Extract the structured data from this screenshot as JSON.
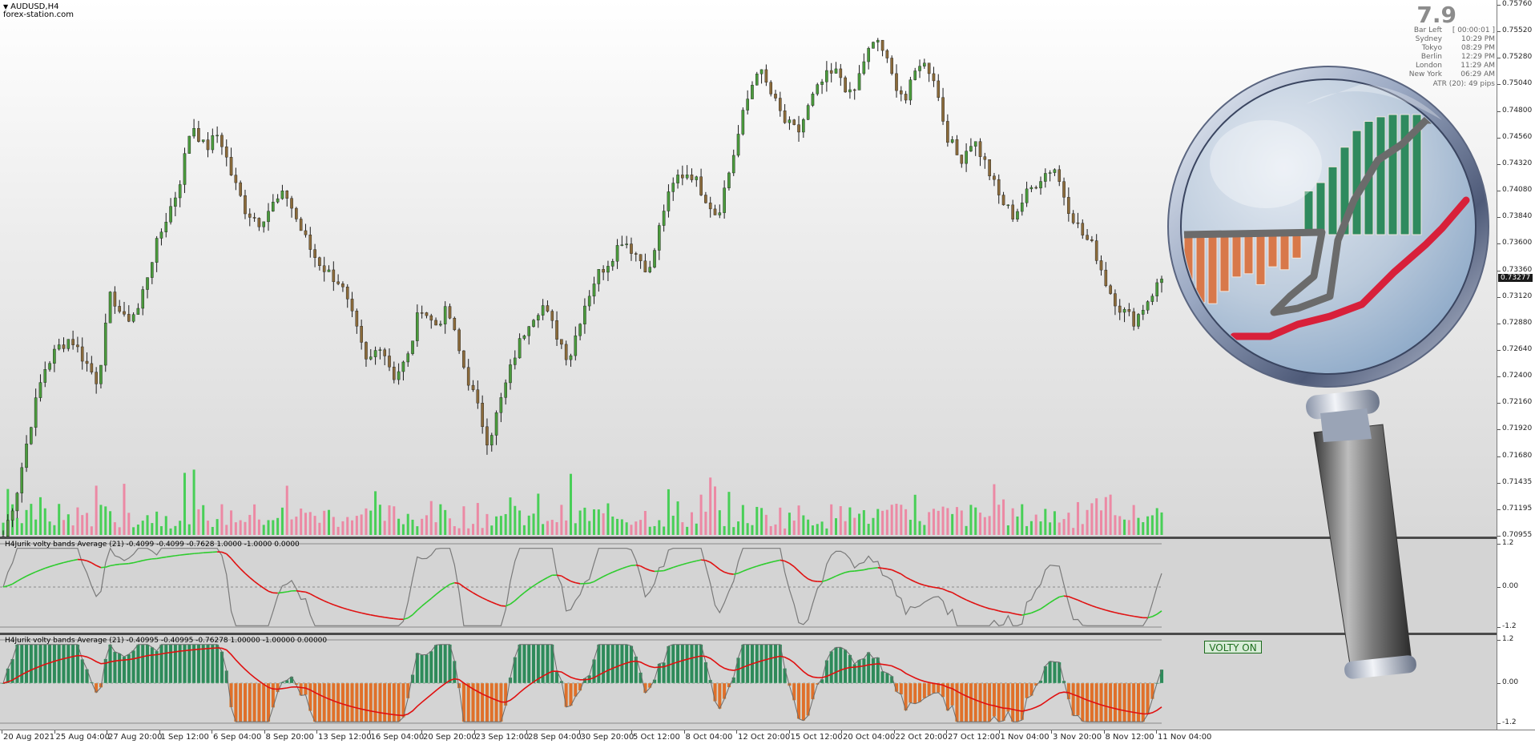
{
  "window": {
    "symbol": "AUDUSD,H4",
    "watermark": "forex-station.com"
  },
  "info_panel": {
    "big_value": "7.9",
    "rows": [
      {
        "label": "Bar Left",
        "value": "[ 00:00:01 ]"
      },
      {
        "label": "Sydney",
        "value": "10:29 PM"
      },
      {
        "label": "Tokyo",
        "value": "08:29 PM"
      },
      {
        "label": "Berlin",
        "value": "12:29 PM"
      },
      {
        "label": "London",
        "value": "11:29 AM"
      },
      {
        "label": "New York",
        "value": "06:29 AM"
      }
    ],
    "atr": "ATR (20): 49 pips"
  },
  "main_pane": {
    "current_price": "0.73277",
    "price_axis": [
      "0.75760",
      "0.75520",
      "0.75280",
      "0.75040",
      "0.74800",
      "0.74560",
      "0.74320",
      "0.74080",
      "0.73840",
      "0.73600",
      "0.73360",
      "0.73120",
      "0.72880",
      "0.72640",
      "0.72400",
      "0.72160",
      "0.71920",
      "0.71680",
      "0.71435",
      "0.71195",
      "0.70955"
    ]
  },
  "indicator1": {
    "title": "H4Jurik volty bands Average (21) -0.4099 -0.4099 -0.7628 1.0000 -1.0000 0.0000",
    "axis": [
      "1.2",
      "0.00",
      "-1.2"
    ]
  },
  "indicator2": {
    "title": "H4Jurik volty bands Average (21) -0.40995 -0.40995 -0.76278 1.00000 -1.00000 0.00000",
    "axis": [
      "1.2",
      "0.00",
      "-1.2"
    ],
    "badge": "VOLTY ON"
  },
  "time_axis": [
    "20 Aug 2021",
    "25 Aug 04:00",
    "27 Aug 20:00",
    "1 Sep 12:00",
    "6 Sep 04:00",
    "8 Sep 20:00",
    "13 Sep 12:00",
    "16 Sep 04:00",
    "20 Sep 20:00",
    "23 Sep 12:00",
    "28 Sep 04:00",
    "30 Sep 20:00",
    "5 Oct 12:00",
    "8 Oct 04:00",
    "12 Oct 20:00",
    "15 Oct 12:00",
    "20 Oct 04:00",
    "22 Oct 20:00",
    "27 Oct 12:00",
    "1 Nov 04:00",
    "3 Nov 20:00",
    "8 Nov 12:00",
    "11 Nov 04:00"
  ],
  "colors": {
    "bull_candle": "#4a9a3c",
    "bear_candle": "#8a6a3a",
    "vol_up": "#2ecc40",
    "vol_down": "#ef7a9a",
    "osc_line": "#7a7a7a",
    "signal_up": "#2ecc2e",
    "signal_down": "#e01010",
    "hist_up": "#2e8a5a",
    "hist_down": "#e0702a"
  },
  "price_path": [
    0.7095,
    0.7135,
    0.7195,
    0.7245,
    0.7265,
    0.7275,
    0.7255,
    0.7235,
    0.7315,
    0.729,
    0.73,
    0.7345,
    0.738,
    0.741,
    0.747,
    0.7445,
    0.746,
    0.742,
    0.739,
    0.738,
    0.7395,
    0.7405,
    0.7375,
    0.735,
    0.7335,
    0.7325,
    0.729,
    0.725,
    0.727,
    0.724,
    0.7255,
    0.7305,
    0.7285,
    0.73,
    0.7255,
    0.722,
    0.718,
    0.722,
    0.726,
    0.729,
    0.7305,
    0.728,
    0.7255,
    0.73,
    0.733,
    0.7345,
    0.7365,
    0.735,
    0.7335,
    0.739,
    0.742,
    0.7425,
    0.7405,
    0.7385,
    0.743,
    0.748,
    0.752,
    0.7495,
    0.747,
    0.746,
    0.749,
    0.751,
    0.7515,
    0.749,
    0.753,
    0.7545,
    0.751,
    0.749,
    0.7525,
    0.7515,
    0.746,
    0.7435,
    0.7455,
    0.743,
    0.74,
    0.7385,
    0.7405,
    0.742,
    0.743,
    0.7395,
    0.737,
    0.7355,
    0.732,
    0.73,
    0.729,
    0.731,
    0.7328
  ]
}
